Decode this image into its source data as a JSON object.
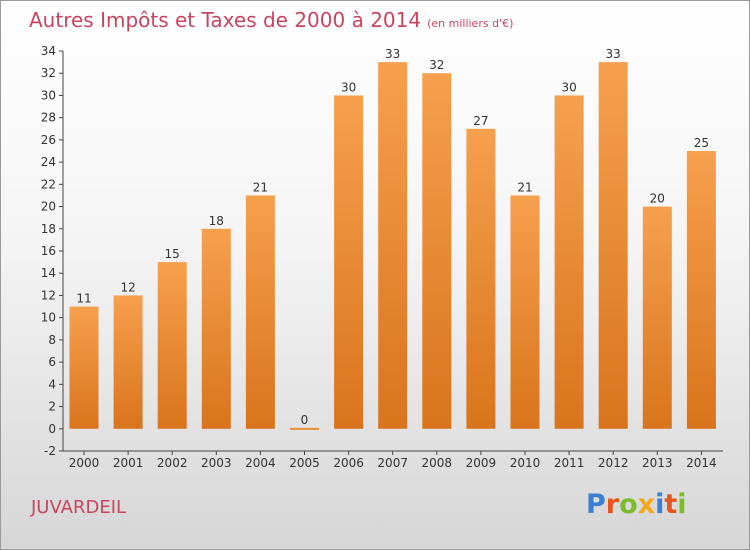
{
  "title": "Autres Impôts et Taxes de 2000 à 2014",
  "unit_note": "(en milliers d'€)",
  "place": "JUVARDEIL",
  "logo": {
    "text": "Proxiti",
    "colors": [
      "#3a7fd1",
      "#e8541e",
      "#7cbc2b",
      "#f2a81d",
      "#3a7fd1",
      "#e8541e",
      "#7cbc2b"
    ]
  },
  "colors": {
    "bar_light": "#f6a04d",
    "bar_dark": "#d9741c",
    "title": "#c8455f"
  },
  "chart_data": {
    "type": "bar",
    "title": "Autres Impôts et Taxes de 2000 à 2014",
    "categories": [
      "2000",
      "2001",
      "2002",
      "2003",
      "2004",
      "2005",
      "2006",
      "2007",
      "2008",
      "2009",
      "2010",
      "2011",
      "2012",
      "2013",
      "2014"
    ],
    "values": [
      11,
      12,
      15,
      18,
      21,
      0,
      30,
      33,
      32,
      27,
      21,
      30,
      33,
      20,
      25
    ],
    "ylim": [
      -2,
      34
    ],
    "yticks": [
      -2,
      0,
      2,
      4,
      6,
      8,
      10,
      12,
      14,
      16,
      18,
      20,
      22,
      24,
      26,
      28,
      30,
      32,
      34
    ],
    "grid": false,
    "xlabel": "",
    "ylabel": ""
  }
}
